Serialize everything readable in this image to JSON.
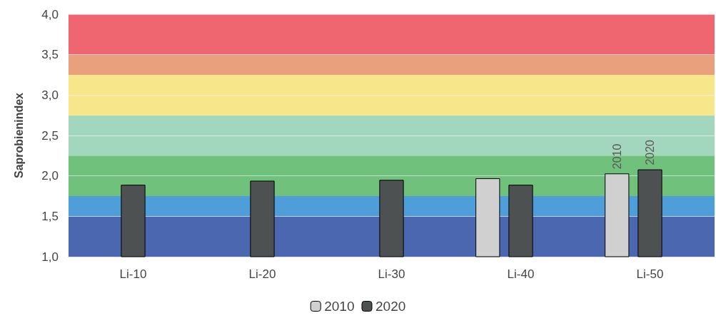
{
  "chart_data": {
    "type": "bar",
    "ylabel": "Saprobienindex",
    "categories": [
      "Li-10",
      "Li-20",
      "Li-30",
      "Li-40",
      "Li-50"
    ],
    "series": [
      {
        "name": "2010",
        "color": "#d0d0d0",
        "values": [
          null,
          null,
          null,
          1.97,
          2.03
        ]
      },
      {
        "name": "2020",
        "color": "#4d5152",
        "values": [
          1.89,
          1.94,
          1.95,
          1.89,
          2.08
        ]
      }
    ],
    "ylim": [
      1,
      4
    ],
    "yticks": [
      {
        "value": 1,
        "label": "1,0"
      },
      {
        "value": 1.5,
        "label": "1,5"
      },
      {
        "value": 2,
        "label": "2,0"
      },
      {
        "value": 2.5,
        "label": "2,5"
      },
      {
        "value": 3,
        "label": "3,0"
      },
      {
        "value": 3.5,
        "label": "3,5"
      },
      {
        "value": 4,
        "label": "4,0"
      }
    ],
    "bands": [
      {
        "axis": "y",
        "from": 1,
        "to": 1.5,
        "color": "#4a67b0"
      },
      {
        "axis": "y",
        "from": 1.5,
        "to": 1.75,
        "color": "#4e9fd9"
      },
      {
        "axis": "y",
        "from": 1.75,
        "to": 2.25,
        "color": "#6fc17b"
      },
      {
        "axis": "y",
        "from": 2.25,
        "to": 2.75,
        "color": "#a3d7bd"
      },
      {
        "axis": "y",
        "from": 2.75,
        "to": 3.25,
        "color": "#f7e68a"
      },
      {
        "axis": "y",
        "from": 3.25,
        "to": 3.5,
        "color": "#e9a07c"
      },
      {
        "axis": "y",
        "from": 3.5,
        "to": 4,
        "color": "#ef6570"
      }
    ],
    "annotations": [
      {
        "text": "2010",
        "x": "Li-50",
        "y": 2.03
      },
      {
        "text": "2020",
        "x": "Li-50",
        "y": 2.08
      }
    ],
    "grid": "y",
    "legend": "bottom"
  }
}
